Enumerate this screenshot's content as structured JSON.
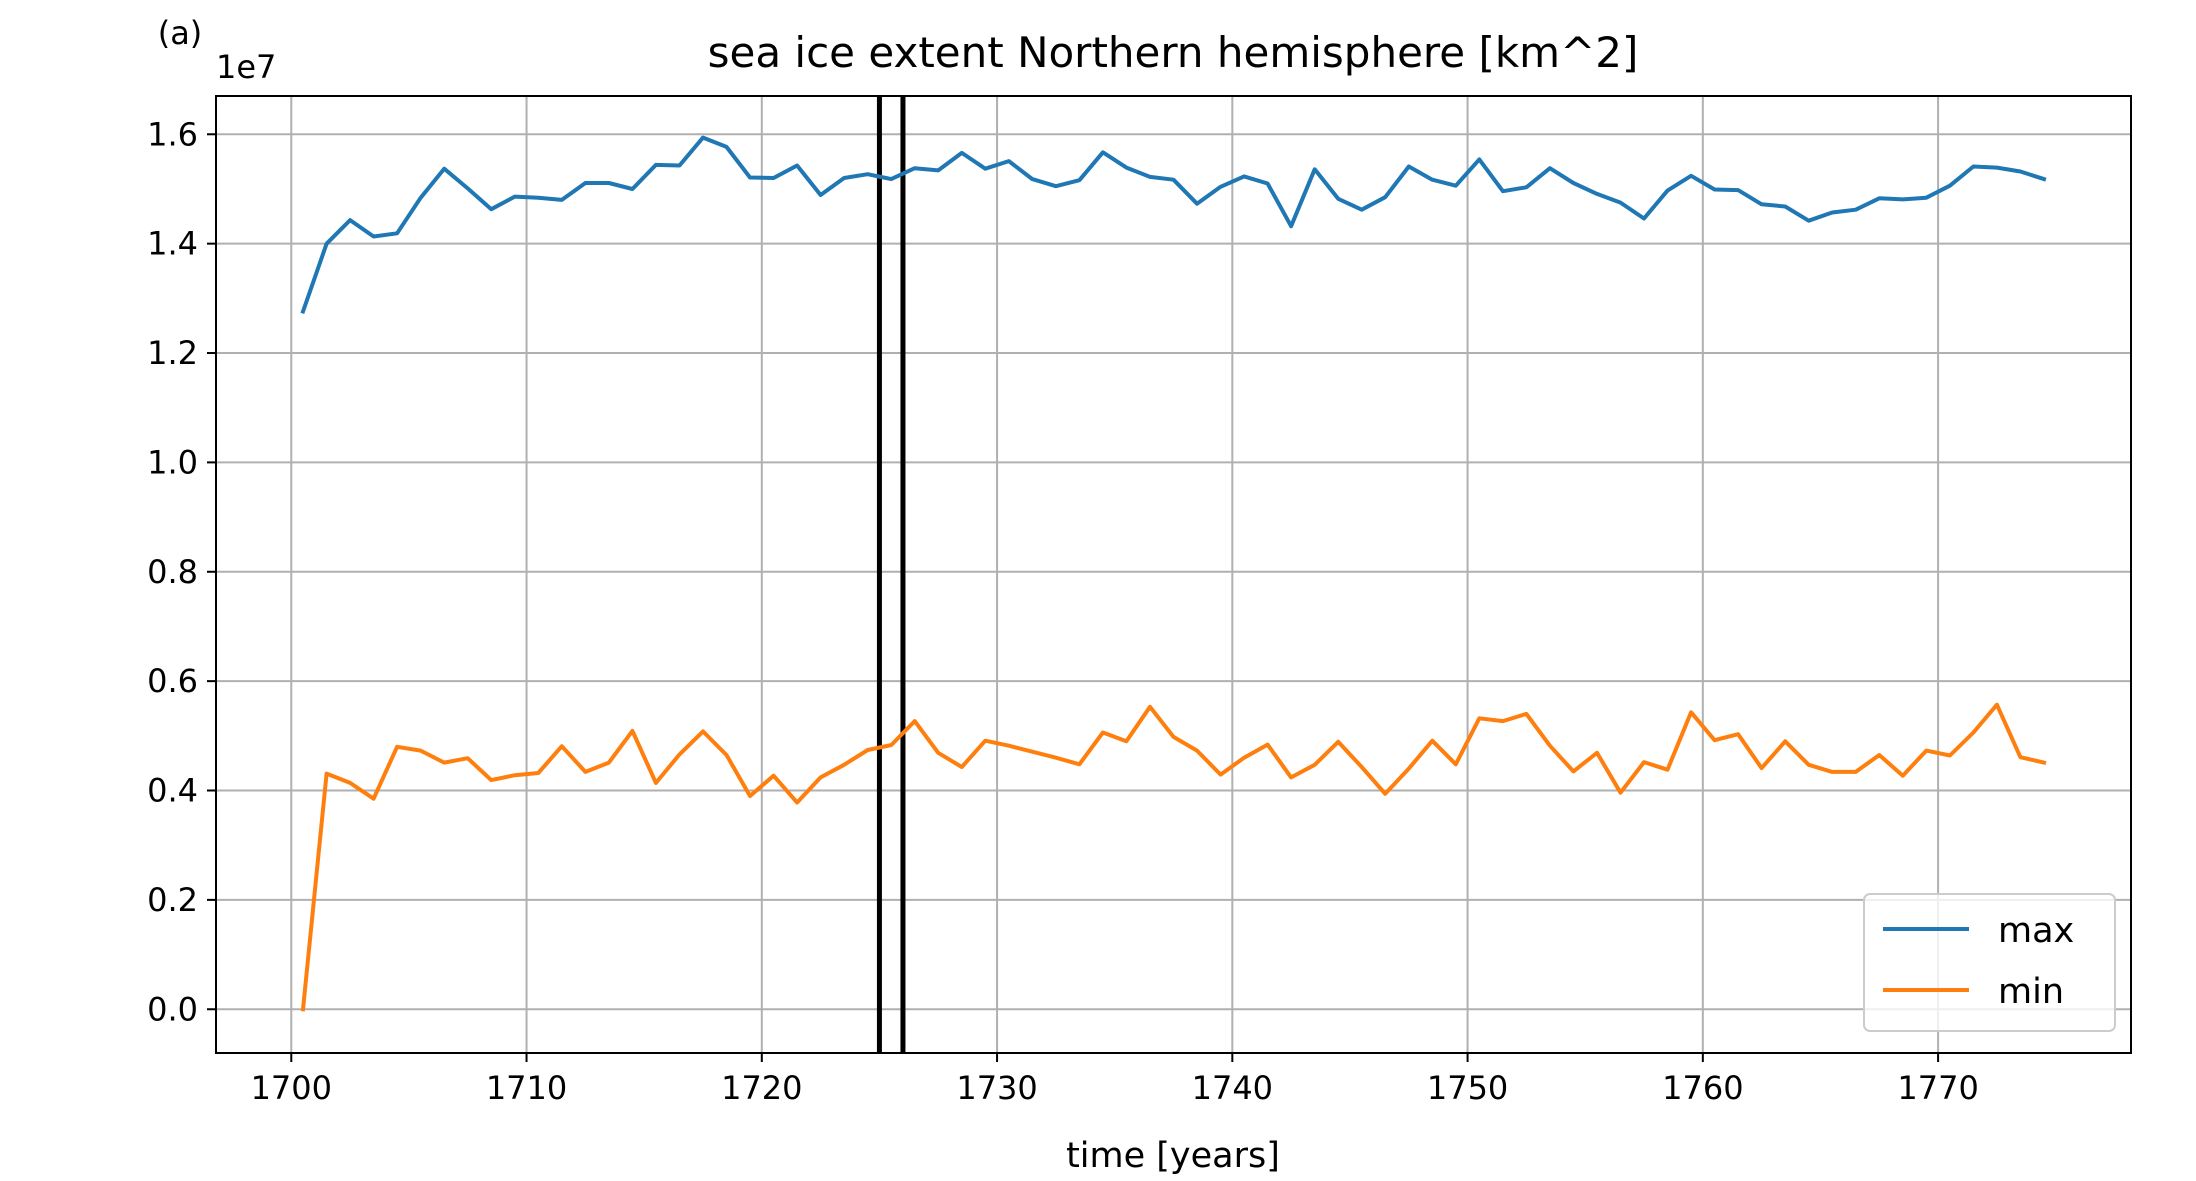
{
  "chart_data": {
    "type": "line",
    "panel_label": "(a)",
    "title": "sea ice extent Northern hemisphere [km^2]",
    "xlabel": "time [years]",
    "ylabel": "",
    "y_offset_label": "1e7",
    "xlim": [
      1696.8,
      1778.2
    ],
    "ylim": [
      -0.08,
      1.67
    ],
    "y_scale_factor": 10000000,
    "grid": true,
    "legend_position": "lower right",
    "x_ticks": [
      1700,
      1710,
      1720,
      1730,
      1740,
      1750,
      1760,
      1770
    ],
    "x_tick_labels": [
      "1700",
      "1710",
      "1720",
      "1730",
      "1740",
      "1750",
      "1760",
      "1770"
    ],
    "y_ticks": [
      0.0,
      0.2,
      0.4,
      0.6,
      0.8,
      1.0,
      1.2,
      1.4,
      1.6
    ],
    "y_tick_labels": [
      "0.0",
      "0.2",
      "0.4",
      "0.6",
      "0.8",
      "1.0",
      "1.2",
      "1.4",
      "1.6"
    ],
    "vertical_lines": [
      {
        "x": 1725.0,
        "color": "#000000"
      },
      {
        "x": 1726.0,
        "color": "#000000"
      }
    ],
    "series": [
      {
        "name": "max",
        "color": "#1f77b4",
        "x": [
          1700.5,
          1701.5,
          1702.5,
          1703.5,
          1704.5,
          1705.5,
          1706.5,
          1707.5,
          1708.5,
          1709.5,
          1710.5,
          1711.5,
          1712.5,
          1713.5,
          1714.5,
          1715.5,
          1716.5,
          1717.5,
          1718.5,
          1719.5,
          1720.5,
          1721.5,
          1722.5,
          1723.5,
          1724.5,
          1725.5,
          1726.5,
          1727.5,
          1728.5,
          1729.5,
          1730.5,
          1731.5,
          1732.5,
          1733.5,
          1734.5,
          1735.5,
          1736.5,
          1737.5,
          1738.5,
          1739.5,
          1740.5,
          1741.5,
          1742.5,
          1743.5,
          1744.5,
          1745.5,
          1746.5,
          1747.5,
          1748.5,
          1749.5,
          1750.5,
          1751.5,
          1752.5,
          1753.5,
          1754.5,
          1755.5,
          1756.5,
          1757.5,
          1758.5,
          1759.5,
          1760.5,
          1761.5,
          1762.5,
          1763.5,
          1764.5,
          1765.5,
          1766.5,
          1767.5,
          1768.5,
          1769.5,
          1770.5,
          1771.5,
          1772.5,
          1773.5,
          1774.5
        ],
        "values": [
          1.276,
          1.4,
          1.443,
          1.413,
          1.419,
          1.484,
          1.537,
          1.501,
          1.463,
          1.486,
          1.484,
          1.48,
          1.511,
          1.511,
          1.5,
          1.544,
          1.543,
          1.594,
          1.577,
          1.521,
          1.52,
          1.543,
          1.489,
          1.52,
          1.527,
          1.518,
          1.538,
          1.534,
          1.566,
          1.537,
          1.551,
          1.518,
          1.505,
          1.516,
          1.567,
          1.539,
          1.522,
          1.517,
          1.473,
          1.504,
          1.523,
          1.51,
          1.432,
          1.536,
          1.482,
          1.462,
          1.485,
          1.541,
          1.517,
          1.506,
          1.554,
          1.496,
          1.503,
          1.538,
          1.511,
          1.491,
          1.475,
          1.446,
          1.497,
          1.524,
          1.499,
          1.498,
          1.472,
          1.468,
          1.442,
          1.457,
          1.462,
          1.483,
          1.481,
          1.484,
          1.506,
          1.541,
          1.539,
          1.532,
          1.518
        ]
      },
      {
        "name": "min",
        "color": "#ff7f0e",
        "x": [
          1700.5,
          1701.5,
          1702.5,
          1703.5,
          1704.5,
          1705.5,
          1706.5,
          1707.5,
          1708.5,
          1709.5,
          1710.5,
          1711.5,
          1712.5,
          1713.5,
          1714.5,
          1715.5,
          1716.5,
          1717.5,
          1718.5,
          1719.5,
          1720.5,
          1721.5,
          1722.5,
          1723.5,
          1724.5,
          1725.5,
          1726.5,
          1727.5,
          1728.5,
          1729.5,
          1730.5,
          1731.5,
          1732.5,
          1733.5,
          1734.5,
          1735.5,
          1736.5,
          1737.5,
          1738.5,
          1739.5,
          1740.5,
          1741.5,
          1742.5,
          1743.5,
          1744.5,
          1745.5,
          1746.5,
          1747.5,
          1748.5,
          1749.5,
          1750.5,
          1751.5,
          1752.5,
          1753.5,
          1754.5,
          1755.5,
          1756.5,
          1757.5,
          1758.5,
          1759.5,
          1760.5,
          1761.5,
          1762.5,
          1763.5,
          1764.5,
          1765.5,
          1766.5,
          1767.5,
          1768.5,
          1769.5,
          1770.5,
          1771.5,
          1772.5,
          1773.5,
          1774.5
        ],
        "values": [
          0.0,
          0.431,
          0.414,
          0.385,
          0.48,
          0.473,
          0.451,
          0.459,
          0.419,
          0.428,
          0.432,
          0.481,
          0.434,
          0.451,
          0.509,
          0.414,
          0.466,
          0.508,
          0.465,
          0.39,
          0.427,
          0.378,
          0.424,
          0.447,
          0.474,
          0.483,
          0.527,
          0.469,
          0.443,
          0.491,
          0.482,
          0.471,
          0.46,
          0.448,
          0.506,
          0.49,
          0.553,
          0.498,
          0.473,
          0.429,
          0.46,
          0.484,
          0.424,
          0.447,
          0.489,
          0.443,
          0.394,
          0.44,
          0.491,
          0.448,
          0.532,
          0.527,
          0.54,
          0.482,
          0.435,
          0.469,
          0.396,
          0.452,
          0.438,
          0.543,
          0.492,
          0.503,
          0.441,
          0.49,
          0.447,
          0.434,
          0.434,
          0.465,
          0.427,
          0.473,
          0.464,
          0.506,
          0.557,
          0.461,
          0.451
        ]
      }
    ]
  }
}
